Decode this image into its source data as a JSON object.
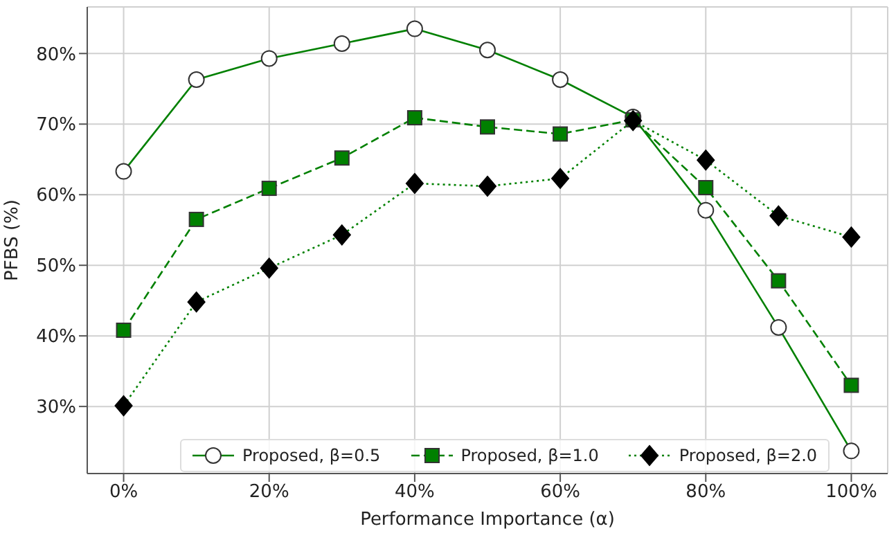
{
  "chart_data": {
    "type": "line",
    "xlabel": "Performance Importance (α)",
    "ylabel": "PFBS (%)",
    "x": [
      0,
      10,
      20,
      30,
      40,
      50,
      60,
      70,
      80,
      90,
      100
    ],
    "xlim": [
      -5,
      105
    ],
    "xticks": [
      {
        "value": 0,
        "label": "0%"
      },
      {
        "value": 20,
        "label": "20%"
      },
      {
        "value": 40,
        "label": "40%"
      },
      {
        "value": 60,
        "label": "60%"
      },
      {
        "value": 80,
        "label": "80%"
      },
      {
        "value": 100,
        "label": "100%"
      }
    ],
    "ylim": [
      20.5,
      86.6
    ],
    "yticks": [
      {
        "value": 30,
        "label": "30%"
      },
      {
        "value": 40,
        "label": "40%"
      },
      {
        "value": 50,
        "label": "50%"
      },
      {
        "value": 60,
        "label": "60%"
      },
      {
        "value": 70,
        "label": "70%"
      },
      {
        "value": 80,
        "label": "80%"
      }
    ],
    "grid": true,
    "legend": "bottom",
    "series": [
      {
        "name": "Proposed, β=0.5",
        "color": "#008000",
        "marker": "circle",
        "line_style": "solid",
        "values": [
          63.3,
          76.3,
          79.3,
          81.4,
          83.5,
          80.5,
          76.3,
          71.0,
          57.8,
          41.2,
          23.7
        ]
      },
      {
        "name": "Proposed, β=1.0",
        "color": "#008000",
        "marker": "square",
        "line_style": "dashed",
        "values": [
          40.8,
          56.5,
          60.9,
          65.2,
          70.9,
          69.6,
          68.6,
          70.6,
          61.0,
          47.8,
          33.0
        ]
      },
      {
        "name": "Proposed, β=2.0",
        "color": "#008000",
        "marker": "diamond",
        "line_style": "dotted",
        "values": [
          30.1,
          44.8,
          49.6,
          54.3,
          61.6,
          61.2,
          62.3,
          70.5,
          64.9,
          57.0,
          54.0
        ]
      }
    ]
  }
}
